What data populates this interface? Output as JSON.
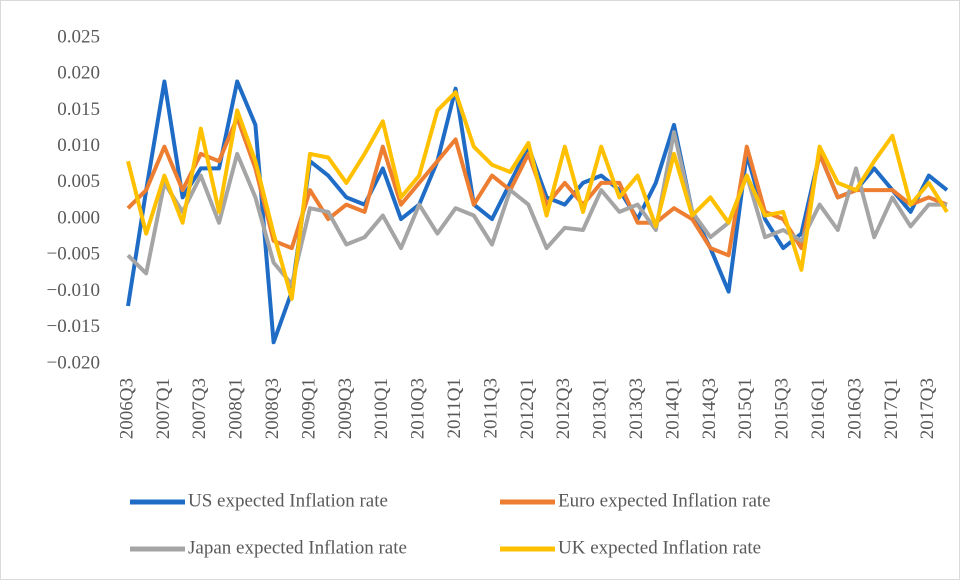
{
  "chart_data": {
    "type": "line",
    "categories": [
      "2006Q3",
      null,
      "2007Q1",
      null,
      "2007Q3",
      null,
      "2008Q1",
      null,
      "2008Q3",
      null,
      "2009Q1",
      null,
      "2009Q3",
      null,
      "2010Q1",
      null,
      "2010Q3",
      null,
      "2011Q1",
      null,
      "2011Q3",
      null,
      "2012Q1",
      null,
      "2012Q3",
      null,
      "2013Q1",
      null,
      "2013Q3",
      null,
      "2014Q1",
      null,
      "2014Q3",
      null,
      "2015Q1",
      null,
      "2015Q3",
      null,
      "2016Q1",
      null,
      "2016Q3",
      null,
      "2017Q1",
      null,
      "2017Q3",
      null
    ],
    "series": [
      {
        "name": "US expected Inflation rate",
        "color": "#1f6cc6",
        "values": [
          -0.012,
          0.004,
          0.019,
          0.003,
          0.007,
          0.007,
          0.019,
          0.013,
          -0.017,
          -0.01,
          0.008,
          0.006,
          0.003,
          0.002,
          0.007,
          0.0,
          0.002,
          0.008,
          0.018,
          0.002,
          0.0,
          0.005,
          0.01,
          0.003,
          0.002,
          0.005,
          0.006,
          0.004,
          0.0,
          0.005,
          0.013,
          0.001,
          -0.004,
          -0.01,
          0.009,
          0.0,
          -0.004,
          -0.002,
          0.009,
          0.003,
          0.004,
          0.007,
          0.004,
          0.001,
          0.006,
          0.004
        ]
      },
      {
        "name": "Euro expected Inflation rate",
        "color": "#ed7d31",
        "values": [
          0.0015,
          0.004,
          0.01,
          0.004,
          0.009,
          0.008,
          0.014,
          0.007,
          -0.003,
          -0.004,
          0.004,
          0.0,
          0.002,
          0.001,
          0.01,
          0.002,
          0.005,
          0.008,
          0.011,
          0.002,
          0.006,
          0.004,
          0.009,
          0.002,
          0.005,
          0.002,
          0.005,
          0.005,
          -0.0005,
          -0.0005,
          0.0015,
          0.0,
          -0.004,
          -0.005,
          0.01,
          0.001,
          0.0,
          -0.004,
          0.009,
          0.003,
          0.004,
          0.004,
          0.004,
          0.002,
          0.003,
          0.002
        ]
      },
      {
        "name": "Japan expected Inflation rate",
        "color": "#a5a5a5",
        "values": [
          -0.005,
          -0.0075,
          0.005,
          0.001,
          0.006,
          -0.0005,
          0.009,
          0.003,
          -0.006,
          -0.009,
          0.0015,
          0.001,
          -0.0035,
          -0.0025,
          0.0005,
          -0.004,
          0.002,
          -0.002,
          0.0015,
          0.0005,
          -0.0035,
          0.004,
          0.002,
          -0.004,
          -0.0012,
          -0.0015,
          0.004,
          0.001,
          0.002,
          -0.0015,
          0.012,
          0.001,
          -0.0025,
          -0.0005,
          0.006,
          -0.0025,
          -0.0015,
          -0.003,
          0.002,
          -0.0015,
          0.007,
          -0.0025,
          0.003,
          -0.001,
          0.002,
          0.002
        ]
      },
      {
        "name": "UK expected Inflation rate",
        "color": "#ffc000",
        "values": [
          0.008,
          -0.002,
          0.006,
          -0.0005,
          0.0125,
          0.001,
          0.015,
          0.008,
          -0.002,
          -0.011,
          0.009,
          0.0085,
          0.005,
          0.009,
          0.0135,
          0.003,
          0.006,
          0.015,
          0.0175,
          0.01,
          0.0075,
          0.0065,
          0.0105,
          0.0005,
          0.01,
          0.001,
          0.01,
          0.003,
          0.006,
          -0.001,
          0.009,
          0.0005,
          0.003,
          -0.0005,
          0.006,
          0.0005,
          0.001,
          -0.007,
          0.01,
          0.005,
          0.004,
          0.008,
          0.0115,
          0.002,
          0.005,
          0.001
        ]
      }
    ],
    "ylim": [
      -0.02,
      0.025
    ],
    "yticks": [
      {
        "value": 0.025,
        "label": "0.025"
      },
      {
        "value": 0.02,
        "label": "0.020"
      },
      {
        "value": 0.015,
        "label": "0.015"
      },
      {
        "value": 0.01,
        "label": "0.010"
      },
      {
        "value": 0.005,
        "label": "0.005"
      },
      {
        "value": 0,
        "label": "0.000"
      },
      {
        "value": -0.005,
        "label": "−0.005"
      },
      {
        "value": -0.01,
        "label": "−0.010"
      },
      {
        "value": -0.015,
        "label": "−0.015"
      },
      {
        "value": -0.02,
        "label": "−0.020"
      }
    ],
    "legend": "bottom"
  }
}
